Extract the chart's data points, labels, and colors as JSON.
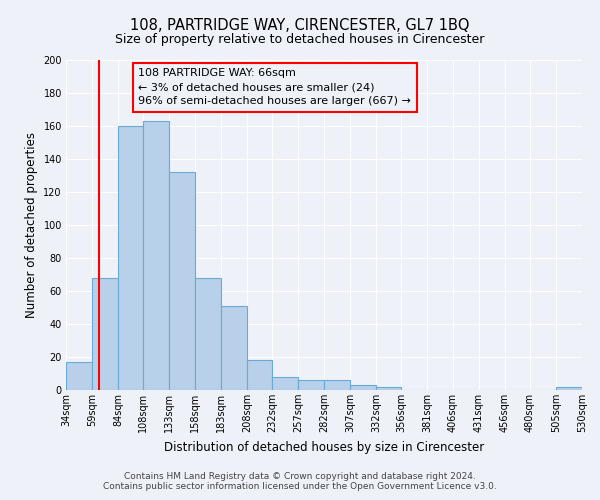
{
  "title": "108, PARTRIDGE WAY, CIRENCESTER, GL7 1BQ",
  "subtitle": "Size of property relative to detached houses in Cirencester",
  "xlabel": "Distribution of detached houses by size in Cirencester",
  "ylabel": "Number of detached properties",
  "footer_line1": "Contains HM Land Registry data © Crown copyright and database right 2024.",
  "footer_line2": "Contains public sector information licensed under the Open Government Licence v3.0.",
  "bin_edges": [
    34,
    59,
    84,
    108,
    133,
    158,
    183,
    208,
    232,
    257,
    282,
    307,
    332,
    356,
    381,
    406,
    431,
    456,
    480,
    505,
    530
  ],
  "bar_heights": [
    17,
    68,
    160,
    163,
    132,
    68,
    51,
    18,
    8,
    6,
    6,
    3,
    2,
    0,
    0,
    0,
    0,
    0,
    0,
    2
  ],
  "bar_color": "#b8d0ea",
  "bar_edge_color": "#6aaad4",
  "ylim": [
    0,
    200
  ],
  "yticks": [
    0,
    20,
    40,
    60,
    80,
    100,
    120,
    140,
    160,
    180,
    200
  ],
  "red_line_x": 66,
  "annotation_text_line1": "108 PARTRIDGE WAY: 66sqm",
  "annotation_text_line2": "← 3% of detached houses are smaller (24)",
  "annotation_text_line3": "96% of semi-detached houses are larger (667) →",
  "background_color": "#eef2f8",
  "grid_color": "#ffffff",
  "title_fontsize": 10.5,
  "subtitle_fontsize": 9,
  "axis_label_fontsize": 8.5,
  "tick_fontsize": 7,
  "annotation_fontsize": 8,
  "footer_fontsize": 6.5
}
